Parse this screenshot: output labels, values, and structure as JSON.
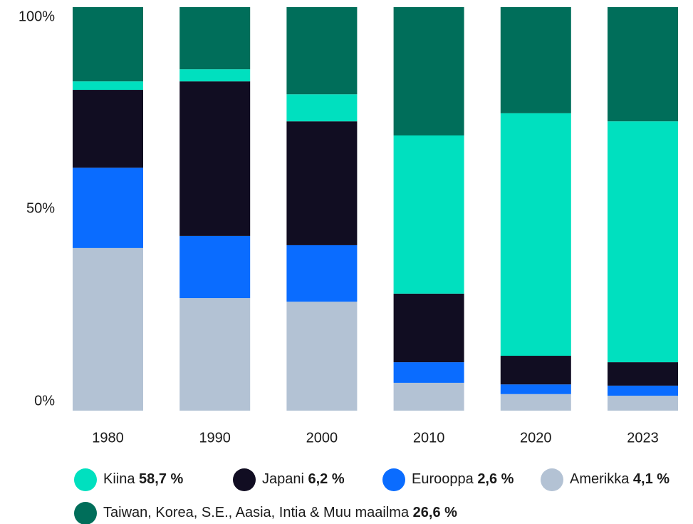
{
  "chart_data": {
    "type": "stacked_bar",
    "categories": [
      "1980",
      "1990",
      "2000",
      "2010",
      "2020",
      "2023"
    ],
    "series": [
      {
        "name": "Amerikka",
        "legend_label": "4,1 %",
        "color": "#b3c2d4",
        "values": [
          40.3,
          27.9,
          27.0,
          6.9,
          4.1,
          3.7
        ]
      },
      {
        "name": "Eurooppa",
        "legend_label": "2,6 %",
        "color": "#0a6cff",
        "values": [
          19.9,
          15.4,
          14.0,
          5.1,
          2.4,
          2.5
        ]
      },
      {
        "name": "Japani",
        "legend_label": "6,2 %",
        "color": "#110d22",
        "values": [
          19.3,
          38.3,
          30.7,
          17.0,
          7.1,
          5.8
        ]
      },
      {
        "name": "Kiina",
        "legend_label": "58,7 %",
        "color": "#00e0bf",
        "values": [
          2.1,
          3.0,
          6.7,
          39.2,
          60.1,
          59.7
        ]
      },
      {
        "name": "Taiwan, Korea, S.E., Aasia, Intia & Muu maailma",
        "legend_label": "26,6 %",
        "color": "#006e5a",
        "values": [
          18.4,
          15.4,
          21.6,
          31.8,
          26.3,
          28.3
        ]
      }
    ],
    "ylim": [
      0,
      100
    ],
    "yticks": [
      {
        "value": 0,
        "label": "0%"
      },
      {
        "value": 50,
        "label": "50%"
      },
      {
        "value": 100,
        "label": "100%"
      }
    ],
    "grid": false
  }
}
